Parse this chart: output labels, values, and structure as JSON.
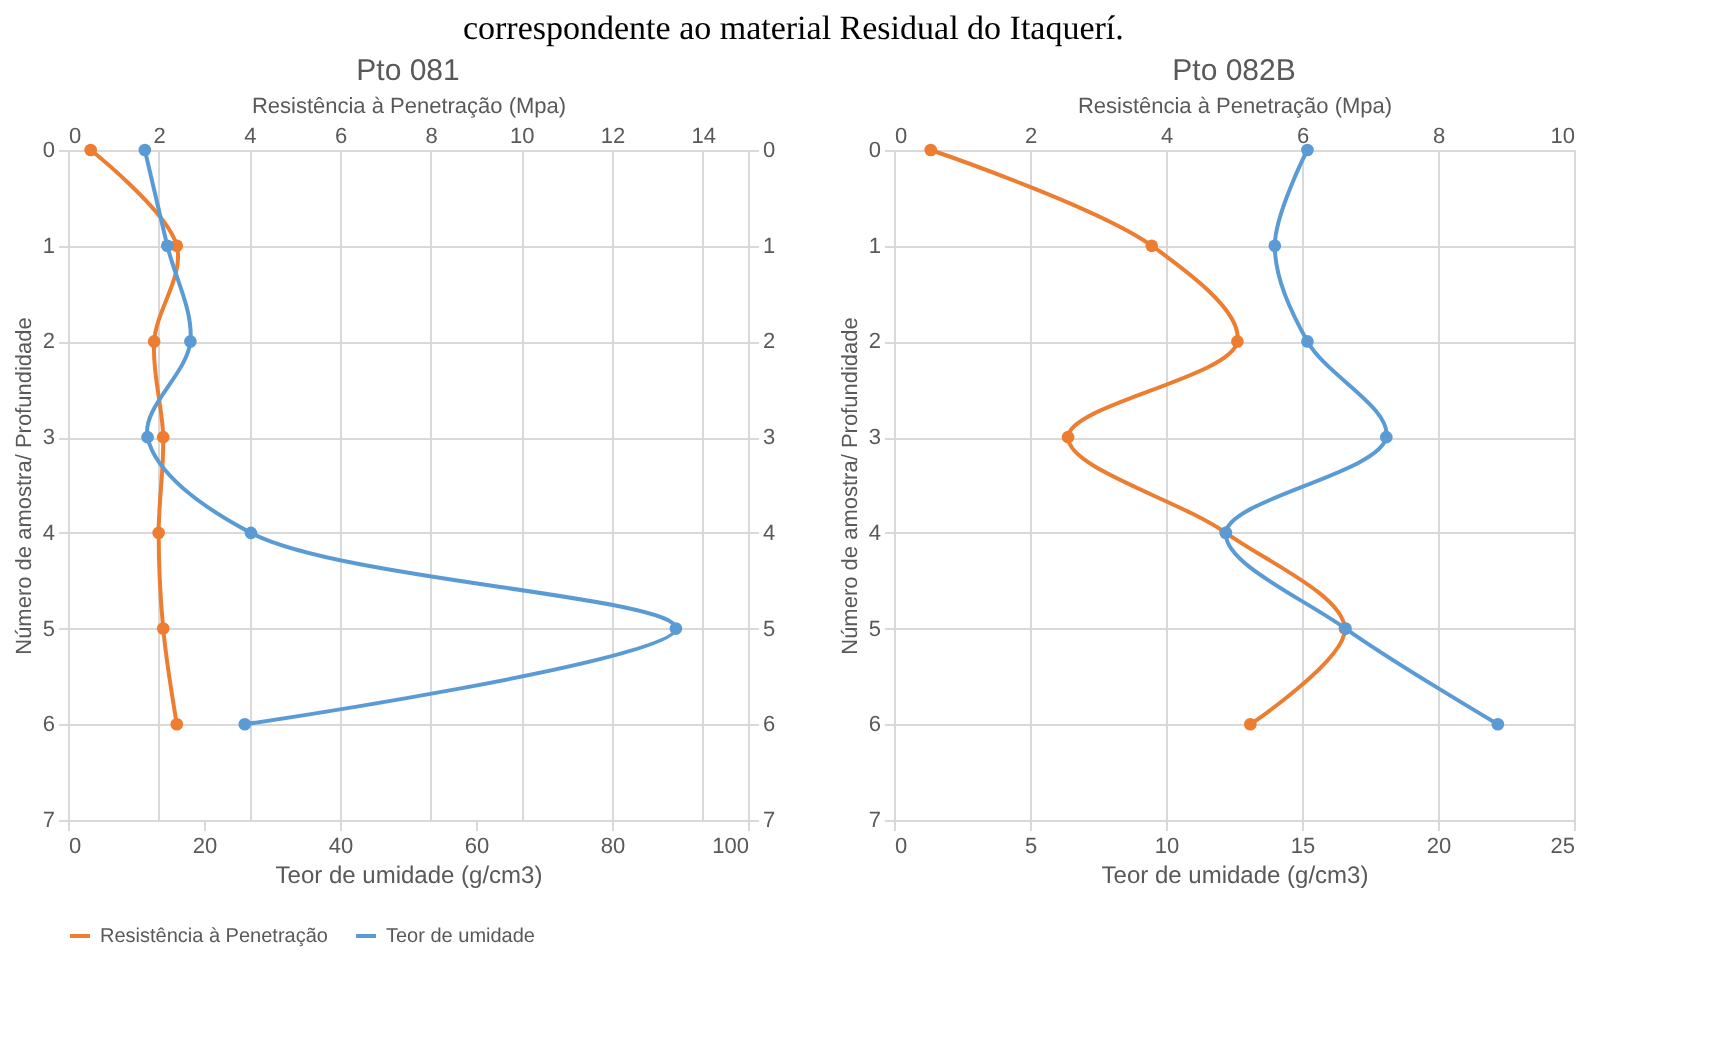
{
  "chart_data": [
    {
      "type": "line",
      "title": "Pto 081",
      "annotations": [
        "correspondente ao material Residual do Itaquerí."
      ],
      "xlabel": "Teor de umidade (g/cm3)",
      "x2label": "Resistência à Penetração (Mpa)",
      "ylabel": "Número de amostra/ Profundidade",
      "xlim": [
        0,
        100
      ],
      "xticks": [
        0,
        20,
        40,
        60,
        80,
        100
      ],
      "x2lim": [
        0,
        15
      ],
      "x2ticks": [
        0,
        2,
        4,
        6,
        8,
        10,
        12,
        14
      ],
      "ylim": [
        7,
        0
      ],
      "yticks": [
        0,
        1,
        2,
        3,
        4,
        5,
        6,
        7
      ],
      "y2lim": [
        7,
        0
      ],
      "y2ticks": [
        0,
        1,
        2,
        3,
        4,
        5,
        6,
        7
      ],
      "grid": true,
      "legend": "bottom",
      "marker": "circle",
      "line_style": "solid",
      "series": [
        {
          "name": "Resistência à Penetração",
          "color": "#ed7d31",
          "axis": "x2",
          "x": [
            0.5,
            2.4,
            1.9,
            2.1,
            2.0,
            2.1,
            2.4
          ],
          "values": [
            0,
            1,
            2,
            3,
            4,
            5,
            6
          ]
        },
        {
          "name": "Teor de umidade",
          "color": "#5b9bd5",
          "x": [
            11.3,
            14.6,
            18.0,
            11.7,
            26.9,
            89.4,
            26.0
          ],
          "values": [
            0,
            1,
            2,
            3,
            4,
            5,
            6
          ]
        }
      ]
    },
    {
      "type": "line",
      "title": "Pto 082B",
      "xlabel": "Teor de umidade (g/cm3)",
      "x2label": "Resistência à Penetração (Mpa)",
      "ylabel": "Número de amostra/ Profundidade",
      "xlim": [
        0,
        25
      ],
      "xticks": [
        0,
        5,
        10,
        15,
        20,
        25
      ],
      "x2lim": [
        0,
        10
      ],
      "x2ticks": [
        0,
        2,
        4,
        6,
        8,
        10
      ],
      "ylim": [
        7,
        0
      ],
      "yticks": [
        0,
        1,
        2,
        3,
        4,
        5,
        6,
        7
      ],
      "grid": true,
      "legend": "bottom",
      "marker": "circle",
      "line_style": "solid",
      "series": [
        {
          "name": "Resistência à Penetração",
          "color": "#ed7d31",
          "axis": "x2",
          "x": [
            0.54,
            3.79,
            5.05,
            2.56,
            4.88,
            6.63,
            5.24
          ],
          "values": [
            0,
            1,
            2,
            3,
            4,
            5,
            6
          ]
        },
        {
          "name": "Teor de umidade",
          "color": "#5b9bd5",
          "x": [
            15.2,
            14.0,
            15.2,
            18.1,
            12.2,
            16.6,
            22.2
          ],
          "values": [
            0,
            1,
            2,
            3,
            4,
            5,
            6
          ]
        }
      ]
    }
  ]
}
